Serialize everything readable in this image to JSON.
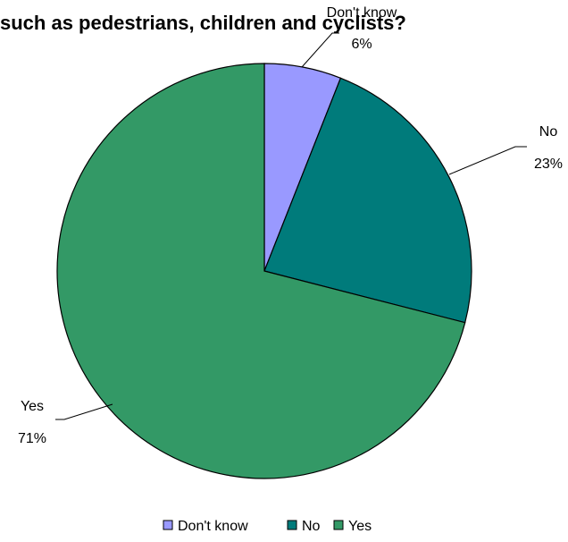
{
  "chart_data": {
    "type": "pie",
    "title": "such as pedestrians, children and cyclists?",
    "categories": [
      "Don't know",
      "No",
      "Yes"
    ],
    "values": [
      6,
      23,
      71
    ],
    "value_labels": [
      "6%",
      "23%",
      "71%"
    ],
    "colors": [
      "#9999ff",
      "#007b7b",
      "#339966"
    ],
    "start_angle_deg": 0,
    "direction": "clockwise",
    "legend": {
      "position": "bottom",
      "entries": [
        "Don't know",
        "No",
        "Yes"
      ]
    }
  }
}
